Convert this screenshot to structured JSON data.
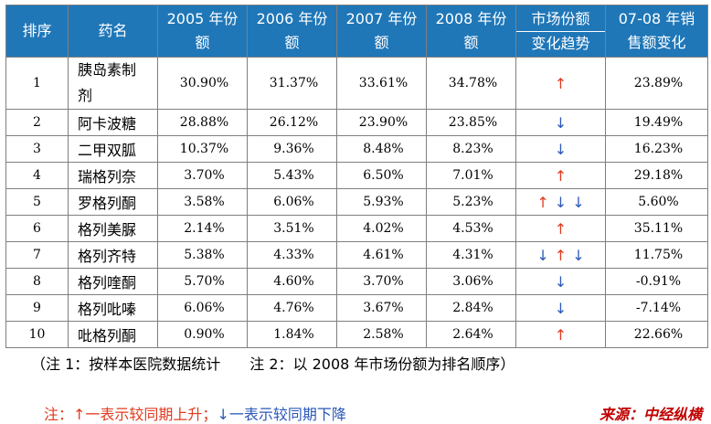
{
  "header": {
    "rank": "排序",
    "drug": "药名",
    "y2005_line1": "2005 年份",
    "y2005_line2": "额",
    "y2006_line1": "2006 年份",
    "y2006_line2": "额",
    "y2007_line1": "2007 年份",
    "y2007_line2": "额",
    "y2008_line1": "2008 年份",
    "y2008_line2": "额",
    "trend_line1": "市场份额",
    "trend_line2": "变化趋势",
    "change_line1": "07-08 年销",
    "change_line2": "售额变化"
  },
  "rows": [
    {
      "rank": "1",
      "name1": "胰岛素制",
      "name2": "剂",
      "s2005": "30.90%",
      "s2006": "31.37%",
      "s2007": "33.61%",
      "s2008": "34.78%",
      "change": "23.89%"
    },
    {
      "rank": "2",
      "name": "阿卡波糖",
      "s2005": "28.88%",
      "s2006": "26.12%",
      "s2007": "23.90%",
      "s2008": "23.85%",
      "change": "19.49%"
    },
    {
      "rank": "3",
      "name": "二甲双胍",
      "s2005": "10.37%",
      "s2006": "9.36%",
      "s2007": "8.48%",
      "s2008": "8.23%",
      "change": "16.23%"
    },
    {
      "rank": "4",
      "name": "瑞格列奈",
      "s2005": "3.70%",
      "s2006": "5.43%",
      "s2007": "6.50%",
      "s2008": "7.01%",
      "change": "29.18%"
    },
    {
      "rank": "5",
      "name": "罗格列酮",
      "s2005": "3.58%",
      "s2006": "6.06%",
      "s2007": "5.93%",
      "s2008": "5.23%",
      "change": "5.60%"
    },
    {
      "rank": "6",
      "name": "格列美脲",
      "s2005": "2.14%",
      "s2006": "3.51%",
      "s2007": "4.02%",
      "s2008": "4.53%",
      "change": "35.11%"
    },
    {
      "rank": "7",
      "name": "格列齐特",
      "s2005": "5.38%",
      "s2006": "4.33%",
      "s2007": "4.61%",
      "s2008": "4.31%",
      "change": "11.75%"
    },
    {
      "rank": "8",
      "name": "格列喹酮",
      "s2005": "5.70%",
      "s2006": "4.60%",
      "s2007": "3.70%",
      "s2008": "3.06%",
      "change": "-0.91%"
    },
    {
      "rank": "9",
      "name": "格列吡嗪",
      "s2005": "6.06%",
      "s2006": "4.76%",
      "s2007": "3.67%",
      "s2008": "2.84%",
      "change": "-7.14%"
    },
    {
      "rank": "10",
      "name": "吡格列酮",
      "s2005": "0.90%",
      "s2006": "1.84%",
      "s2007": "2.58%",
      "s2008": "2.64%",
      "change": "22.66%"
    }
  ],
  "trend_icons": {
    "up": "↑",
    "down": "↓",
    "r1": [
      "up"
    ],
    "r2": [
      "down"
    ],
    "r3": [
      "down"
    ],
    "r4": [
      "up"
    ],
    "r5": [
      "up",
      "down",
      "down"
    ],
    "r6": [
      "up"
    ],
    "r7": [
      "down",
      "up",
      "down"
    ],
    "r8": [
      "down"
    ],
    "r9": [
      "down"
    ],
    "r10": [
      "up"
    ]
  },
  "notes": {
    "note1": "（注 1：按样本医院数据统计　　注 2：以 2008 年市场份额为排名顺序）",
    "legend_prefix": "注：",
    "legend_up": "↑一表示较同期上升；",
    "legend_down": "↓一表示较同期下降",
    "source": "来源：中经纵横"
  },
  "colors": {
    "header_bg": "#1f77b8",
    "up": "#e03a1e",
    "down": "#2a58b8",
    "source": "#c00000"
  }
}
